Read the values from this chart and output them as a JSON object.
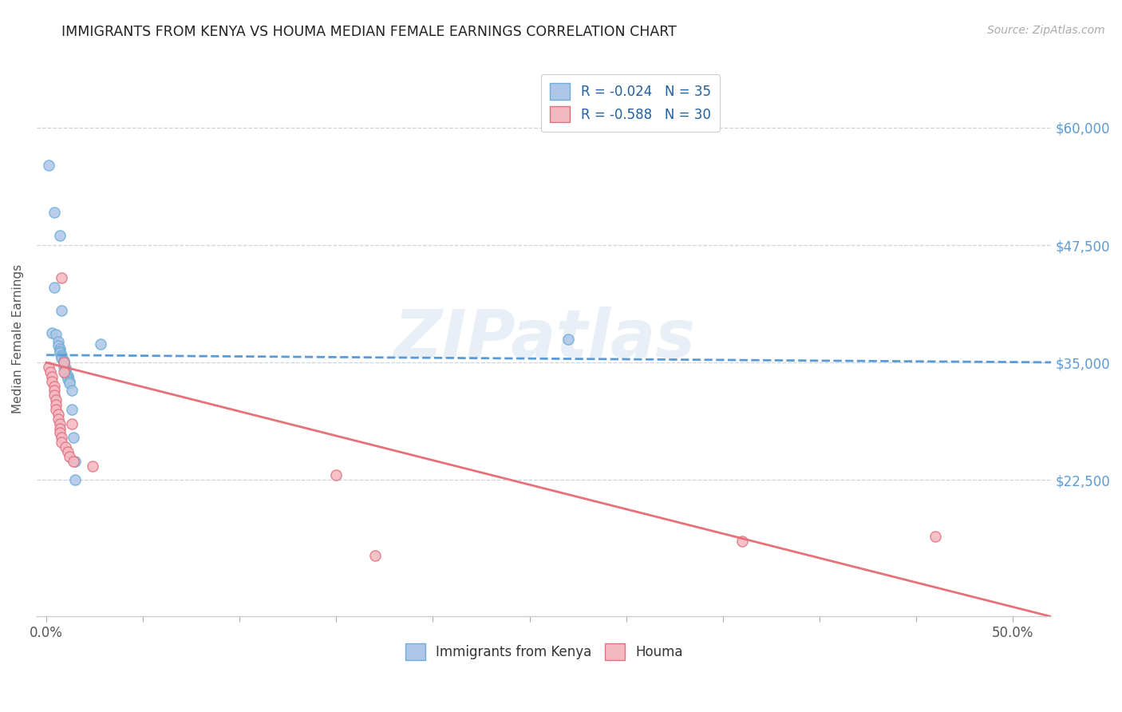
{
  "title": "IMMIGRANTS FROM KENYA VS HOUMA MEDIAN FEMALE EARNINGS CORRELATION CHART",
  "source": "Source: ZipAtlas.com",
  "xlabel_ticks": [
    "0.0%",
    "",
    "",
    "",
    "",
    "",
    "",
    "",
    "",
    "",
    "50.0%"
  ],
  "xlabel_vals": [
    0.0,
    0.05,
    0.1,
    0.15,
    0.2,
    0.25,
    0.3,
    0.35,
    0.4,
    0.45,
    0.5
  ],
  "ylabel": "Median Female Earnings",
  "yticks": [
    22500,
    35000,
    47500,
    60000
  ],
  "ytick_labels": [
    "$22,500",
    "$35,000",
    "$47,500",
    "$60,000"
  ],
  "xlim": [
    -0.005,
    0.52
  ],
  "ylim": [
    8000,
    67000
  ],
  "legend_series": [
    {
      "label": "R = -0.024   N = 35",
      "facecolor": "#aec6e8",
      "edgecolor": "#6baed6"
    },
    {
      "label": "R = -0.588   N = 30",
      "facecolor": "#f4b8c1",
      "edgecolor": "#e07080"
    }
  ],
  "legend_labels_bottom": [
    "Immigrants from Kenya",
    "Houma"
  ],
  "watermark": "ZIPatlas",
  "kenya_scatter": [
    [
      0.001,
      56000
    ],
    [
      0.004,
      51000
    ],
    [
      0.007,
      48500
    ],
    [
      0.004,
      43000
    ],
    [
      0.008,
      40500
    ],
    [
      0.003,
      38200
    ],
    [
      0.005,
      38000
    ],
    [
      0.006,
      37200
    ],
    [
      0.006,
      36800
    ],
    [
      0.007,
      36500
    ],
    [
      0.007,
      36200
    ],
    [
      0.007,
      36000
    ],
    [
      0.008,
      35800
    ],
    [
      0.008,
      35600
    ],
    [
      0.008,
      35400
    ],
    [
      0.009,
      35200
    ],
    [
      0.009,
      35000
    ],
    [
      0.009,
      34800
    ],
    [
      0.009,
      34600
    ],
    [
      0.01,
      34400
    ],
    [
      0.01,
      34200
    ],
    [
      0.01,
      34000
    ],
    [
      0.01,
      33800
    ],
    [
      0.011,
      33600
    ],
    [
      0.011,
      33400
    ],
    [
      0.011,
      33200
    ],
    [
      0.012,
      33000
    ],
    [
      0.012,
      32800
    ],
    [
      0.013,
      32000
    ],
    [
      0.013,
      30000
    ],
    [
      0.014,
      27000
    ],
    [
      0.015,
      24500
    ],
    [
      0.015,
      22500
    ],
    [
      0.27,
      37500
    ],
    [
      0.028,
      37000
    ]
  ],
  "houma_scatter": [
    [
      0.001,
      34500
    ],
    [
      0.002,
      34000
    ],
    [
      0.003,
      33500
    ],
    [
      0.003,
      33000
    ],
    [
      0.004,
      32500
    ],
    [
      0.004,
      32000
    ],
    [
      0.004,
      31500
    ],
    [
      0.005,
      31000
    ],
    [
      0.005,
      30500
    ],
    [
      0.005,
      30000
    ],
    [
      0.006,
      29500
    ],
    [
      0.006,
      29000
    ],
    [
      0.007,
      28500
    ],
    [
      0.007,
      28000
    ],
    [
      0.007,
      27500
    ],
    [
      0.008,
      27000
    ],
    [
      0.008,
      26500
    ],
    [
      0.008,
      44000
    ],
    [
      0.009,
      35000
    ],
    [
      0.009,
      34000
    ],
    [
      0.01,
      26000
    ],
    [
      0.011,
      25500
    ],
    [
      0.012,
      25000
    ],
    [
      0.013,
      28500
    ],
    [
      0.014,
      24500
    ],
    [
      0.15,
      23000
    ],
    [
      0.17,
      14500
    ],
    [
      0.36,
      16000
    ],
    [
      0.46,
      16500
    ],
    [
      0.024,
      24000
    ]
  ],
  "kenya_line_color": "#5b9bd5",
  "houma_line_color": "#e8707a",
  "kenya_dot_face": "#aec6e8",
  "kenya_dot_edge": "#6baed6",
  "houma_dot_face": "#f4b8c1",
  "houma_dot_edge": "#e07080",
  "background_color": "#ffffff",
  "grid_color": "#c0c8d0",
  "title_color": "#222222",
  "axis_label_color": "#555555",
  "right_tick_color": "#5b9bd5",
  "source_color": "#aaaaaa",
  "kenya_line_intercept": 35800,
  "kenya_line_slope": -1500,
  "houma_line_intercept": 35000,
  "houma_line_slope": -52000
}
